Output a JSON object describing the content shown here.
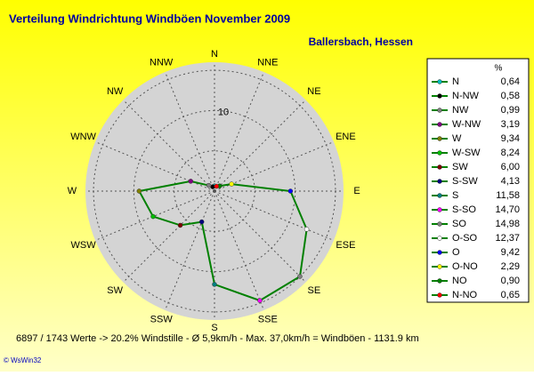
{
  "chart_data": {
    "type": "radar",
    "title": "Verteilung Windrichtung Windböen  November 2009",
    "subtitle": "Ballersbach, Hessen",
    "axis_labels": [
      "N",
      "NNE",
      "NE",
      "ENE",
      "E",
      "ESE",
      "SE",
      "SSE",
      "S",
      "SSW",
      "SW",
      "WSW",
      "W",
      "WNW",
      "NW",
      "NNW"
    ],
    "direction": "counterclockwise",
    "legend_header": "%",
    "categories": [
      "N",
      "N-NW",
      "NW",
      "W-NW",
      "W",
      "W-SW",
      "SW",
      "S-SW",
      "S",
      "S-SO",
      "SO",
      "O-SO",
      "O",
      "O-NO",
      "NO",
      "N-NO"
    ],
    "values": [
      0.64,
      0.58,
      0.99,
      3.19,
      9.34,
      8.24,
      6.0,
      4.13,
      11.58,
      14.7,
      14.98,
      12.37,
      9.42,
      2.29,
      0.9,
      0.65
    ],
    "value_labels": [
      "0,64",
      "0,58",
      "0,99",
      "3,19",
      "9,34",
      "8,24",
      "6,00",
      "4,13",
      "11,58",
      "14,70",
      "14,98",
      "12,37",
      "9,42",
      "2,29",
      "0,90",
      "0,65"
    ],
    "colors": [
      "#00c0c0",
      "#000000",
      "#808080",
      "#800080",
      "#808000",
      "#00c000",
      "#800000",
      "#000080",
      "#008080",
      "#ff00ff",
      "#808080",
      "#ffffff",
      "#0000ff",
      "#ffff00",
      "#008000",
      "#ff0000"
    ],
    "line_color": "#008000",
    "rlim": [
      0,
      16
    ],
    "rticks": [
      10
    ],
    "rgrid": [
      5,
      10,
      15
    ],
    "footer": "6897 / 1743 Werte  -> 20.2% Windstille   -   Ø 5,9km/h  -  Max. 37,0km/h = Windböen   -   1131.9 km",
    "credit": "© WsWin32"
  }
}
